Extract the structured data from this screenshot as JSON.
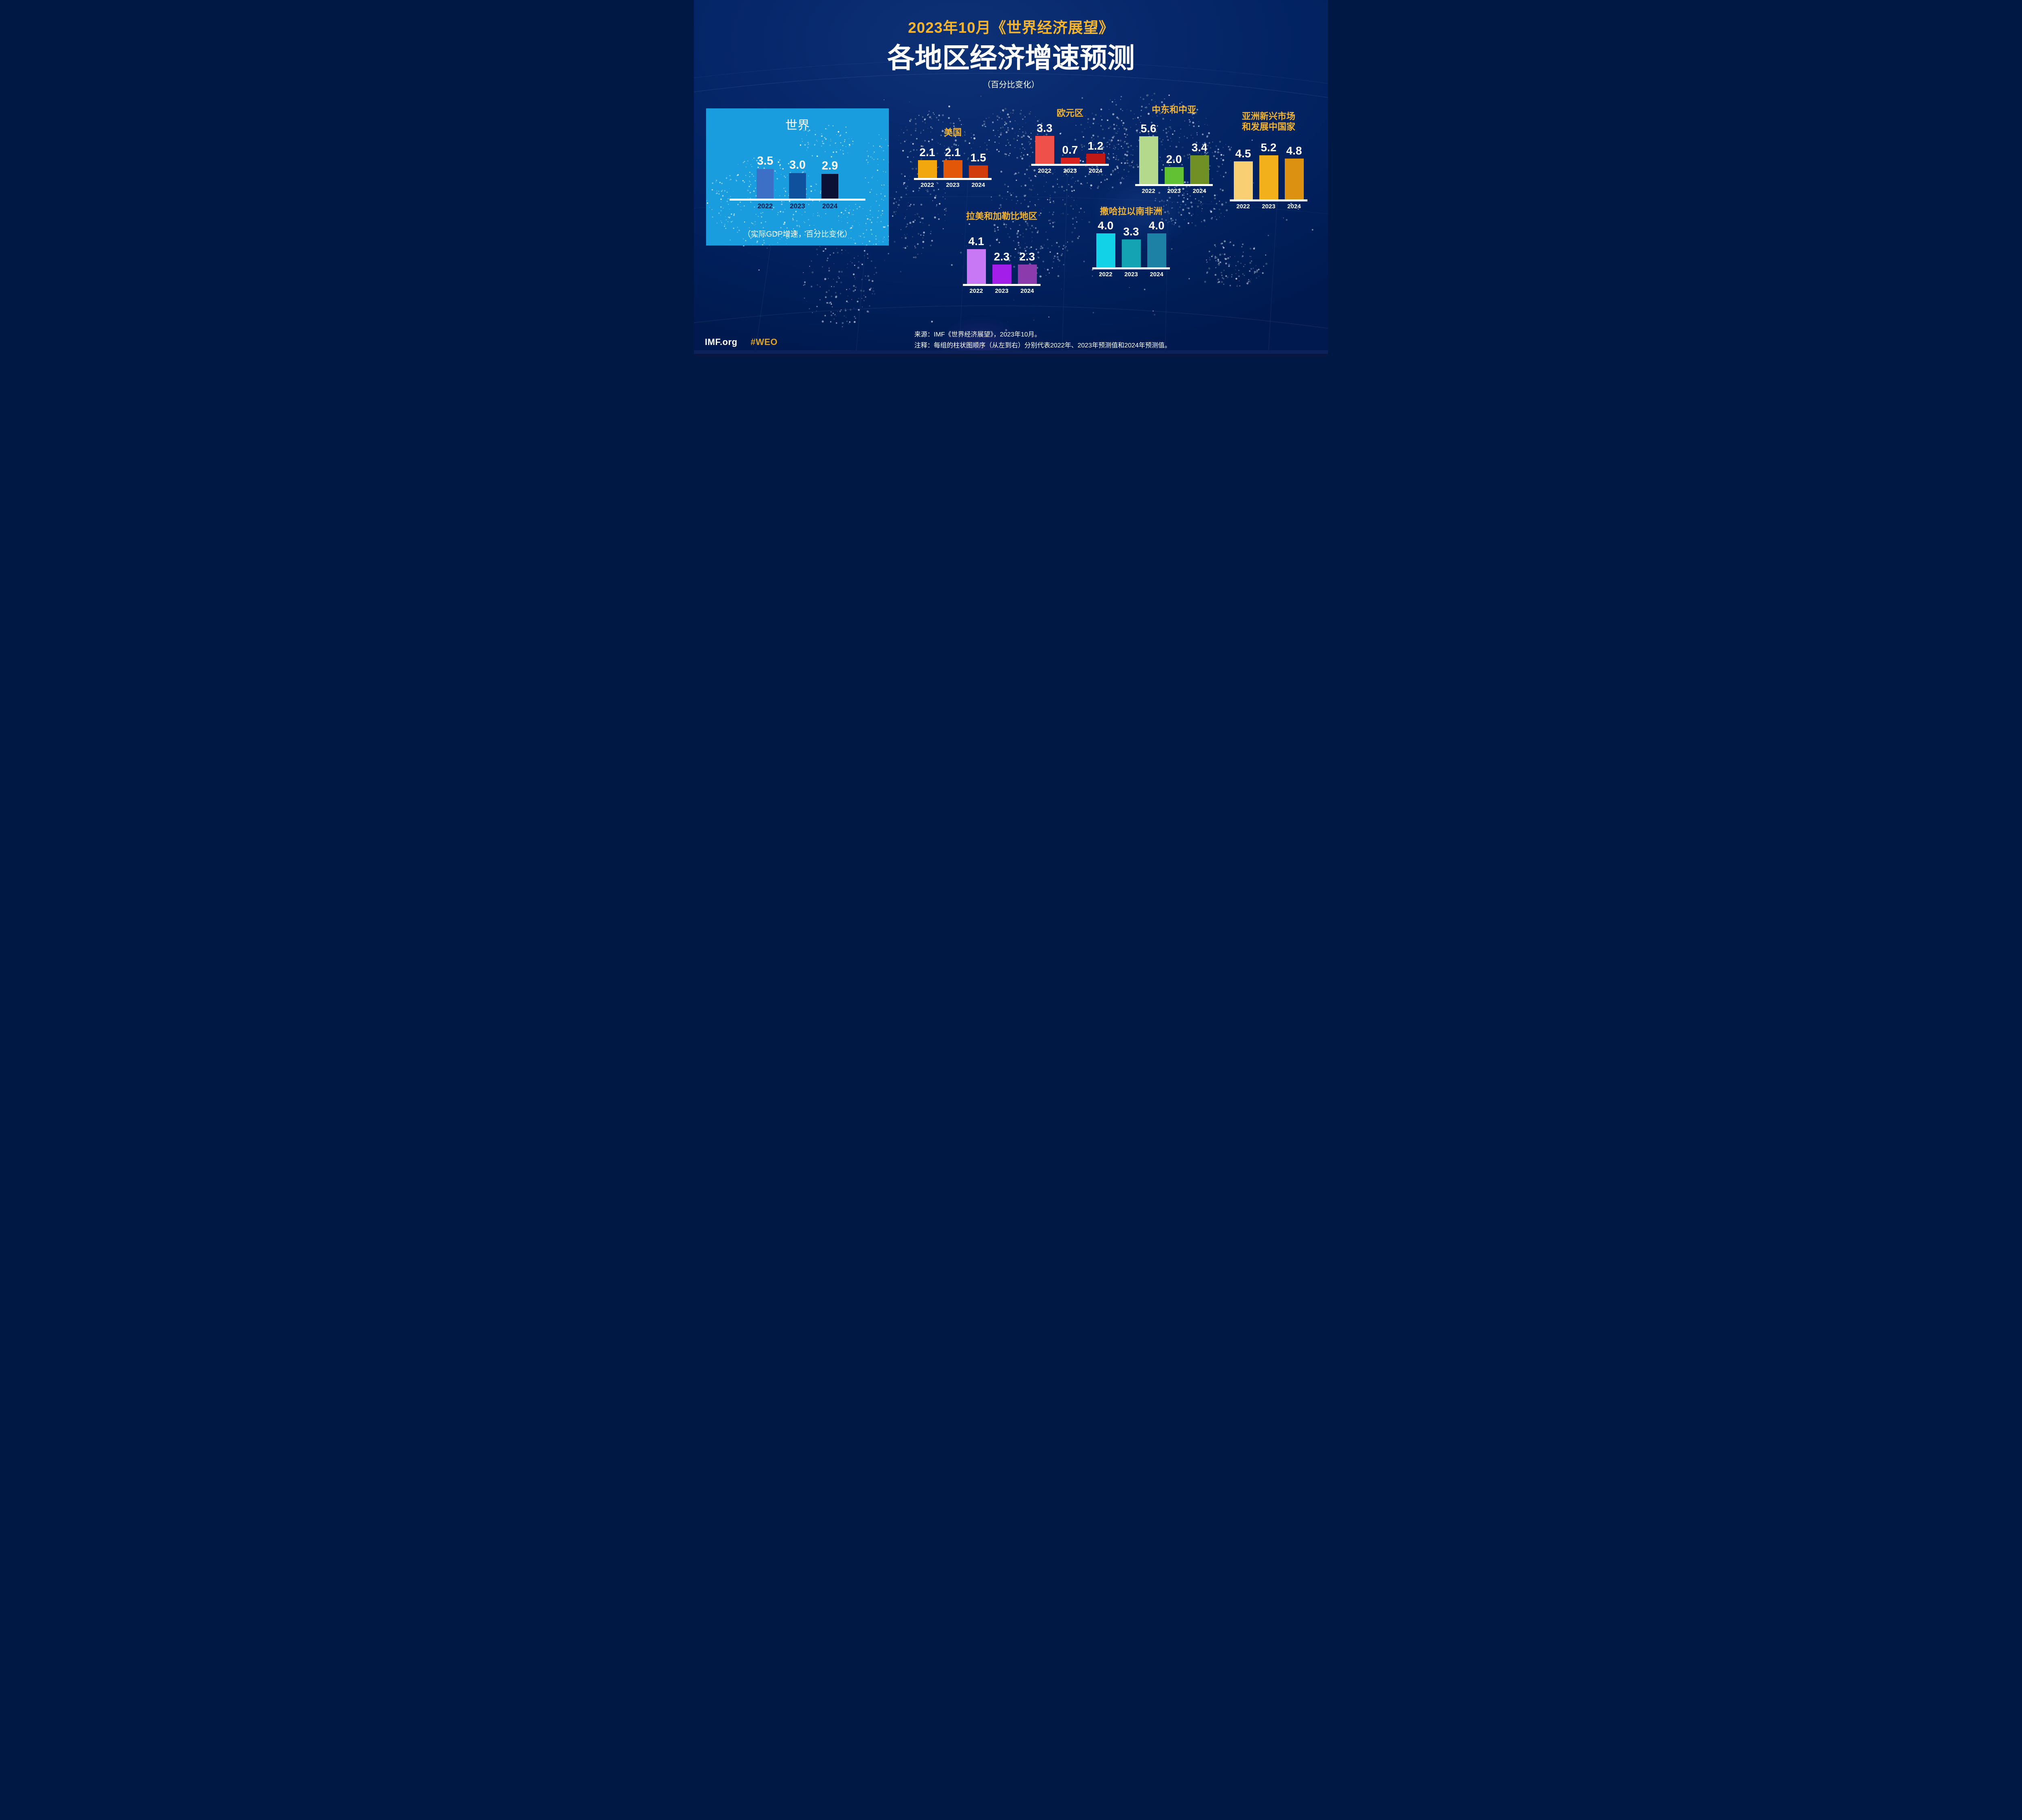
{
  "header": {
    "kicker": "2023年10月《世界经济展望》",
    "title": "各地区经济增速预测",
    "subtitle": "（百分比变化）"
  },
  "world": {
    "title": "世界",
    "caption": "（实际GDP增速，百分比变化）",
    "years": [
      "2022",
      "2023",
      "2024"
    ],
    "values": [
      "3.5",
      "3.0",
      "2.9"
    ],
    "bar_colors": [
      "#3B70C6",
      "#10519D",
      "#0A1134"
    ],
    "panel_color": "#199DDE",
    "year_label_color": "#0A1B4C"
  },
  "regions": [
    {
      "id": "usa",
      "title": "美国",
      "years": [
        "2022",
        "2023",
        "2024"
      ],
      "values": [
        "2.1",
        "2.1",
        "1.5"
      ],
      "bar_colors": [
        "#F2A70F",
        "#E25708",
        "#D23C0C"
      ]
    },
    {
      "id": "euro",
      "title": "欧元区",
      "years": [
        "2022",
        "2023",
        "2024"
      ],
      "values": [
        "3.3",
        "0.7",
        "1.2"
      ],
      "bar_colors": [
        "#F0504A",
        "#D9231F",
        "#C01815"
      ]
    },
    {
      "id": "meca",
      "title": "中东和中亚",
      "years": [
        "2022",
        "2023",
        "2024"
      ],
      "values": [
        "5.6",
        "2.0",
        "3.4"
      ],
      "bar_colors": [
        "#B4D98C",
        "#62C033",
        "#708F24"
      ]
    },
    {
      "id": "asia",
      "title": "亚洲新兴市场\n和发展中国家",
      "years": [
        "2022",
        "2023",
        "2024"
      ],
      "values": [
        "4.5",
        "5.2",
        "4.8"
      ],
      "bar_colors": [
        "#F8CF72",
        "#F2B01A",
        "#DD9110"
      ]
    },
    {
      "id": "latam",
      "title": "拉美和加勒比地区",
      "years": [
        "2022",
        "2023",
        "2024"
      ],
      "values": [
        "4.1",
        "2.3",
        "2.3"
      ],
      "bar_colors": [
        "#C877F5",
        "#A31EE8",
        "#8C3BAD"
      ]
    },
    {
      "id": "ssa",
      "title": "撒哈拉以南非洲",
      "years": [
        "2022",
        "2023",
        "2024"
      ],
      "values": [
        "4.0",
        "3.3",
        "4.0"
      ],
      "bar_colors": [
        "#12D2E8",
        "#13A3B2",
        "#1D80A5"
      ]
    }
  ],
  "footer": {
    "source": "来源：IMF《世界经济展望》，2023年10月。",
    "note": "注释：每组的柱状图顺序（从左到右）分别代表2022年、2023年预测值和2024年预测值。",
    "site": "IMF.org",
    "hashtag": "#WEO"
  },
  "accent_gold": "#F6B42B",
  "chart_data": {
    "type": "bar",
    "kicker": "2023年10月《世界经济展望》",
    "title": "各地区经济增速预测",
    "subtitle": "（百分比变化）",
    "world_caption": "（实际GDP增速，百分比变化）",
    "categories": [
      "2022",
      "2023",
      "2024"
    ],
    "groups": [
      {
        "name": "世界",
        "values": [
          3.5,
          3.0,
          2.9
        ]
      },
      {
        "name": "美国",
        "values": [
          2.1,
          2.1,
          1.5
        ]
      },
      {
        "name": "欧元区",
        "values": [
          3.3,
          0.7,
          1.2
        ]
      },
      {
        "name": "中东和中亚",
        "values": [
          5.6,
          2.0,
          3.4
        ]
      },
      {
        "name": "亚洲新兴市场和发展中国家",
        "values": [
          4.5,
          5.2,
          4.8
        ]
      },
      {
        "name": "拉美和加勒比地区",
        "values": [
          4.1,
          2.3,
          2.3
        ]
      },
      {
        "name": "撒哈拉以南非洲",
        "values": [
          4.0,
          3.3,
          4.0
        ]
      }
    ],
    "legend_position": "none",
    "grid": false,
    "ylim": [
      0,
      6
    ]
  }
}
